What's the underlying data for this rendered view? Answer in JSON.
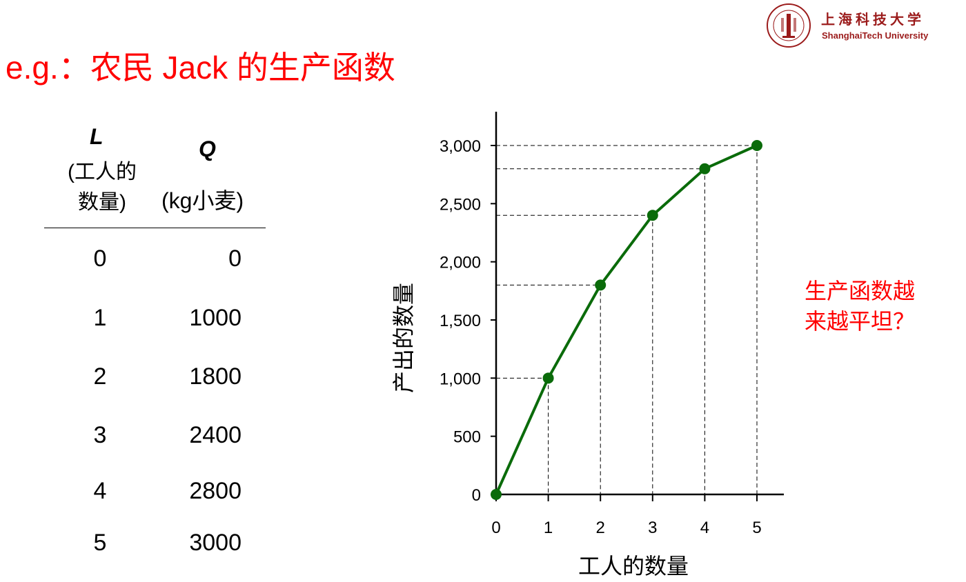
{
  "title": "e.g.：农民 Jack 的生产函数",
  "logo": {
    "name_cn": "上海科技大学",
    "name_en": "ShanghaiTech University",
    "seal_text": "SHANGHAITECH UNIVERSITY"
  },
  "table": {
    "col_l_header": "L",
    "col_l_sub": [
      "(工人的",
      "数量)"
    ],
    "col_q_header": "Q",
    "col_q_sub": "(kg小麦)",
    "rows": [
      {
        "l": "0",
        "q": "0"
      },
      {
        "l": "1",
        "q": "1000"
      },
      {
        "l": "2",
        "q": "1800"
      },
      {
        "l": "3",
        "q": "2400"
      },
      {
        "l": "4",
        "q": "2800"
      },
      {
        "l": "5",
        "q": "3000"
      }
    ]
  },
  "note": [
    "生产函数越",
    "来越平坦？"
  ],
  "colors": {
    "title": "#ff0000",
    "line": "#0a6b0a",
    "logo": "#9b1b1b"
  },
  "chart_data": {
    "type": "line",
    "x": [
      0,
      1,
      2,
      3,
      4,
      5
    ],
    "series": [
      {
        "values": [
          0,
          1000,
          1800,
          2400,
          2800,
          3000
        ]
      }
    ],
    "xlabel": "工人的数量",
    "ylabel": "产出的数量",
    "xticks": [
      "0",
      "1",
      "2",
      "3",
      "4",
      "5"
    ],
    "yticks": [
      {
        "v": 0,
        "label": "0"
      },
      {
        "v": 500,
        "label": "500"
      },
      {
        "v": 1000,
        "label": "1,000"
      },
      {
        "v": 1500,
        "label": "1,500"
      },
      {
        "v": 2000,
        "label": "2,000"
      },
      {
        "v": 2500,
        "label": "2,500"
      },
      {
        "v": 3000,
        "label": "3,000"
      }
    ],
    "xlim": [
      0,
      5
    ],
    "ylim": [
      0,
      3000
    ],
    "grid": false,
    "guide_lines": "dashed"
  }
}
